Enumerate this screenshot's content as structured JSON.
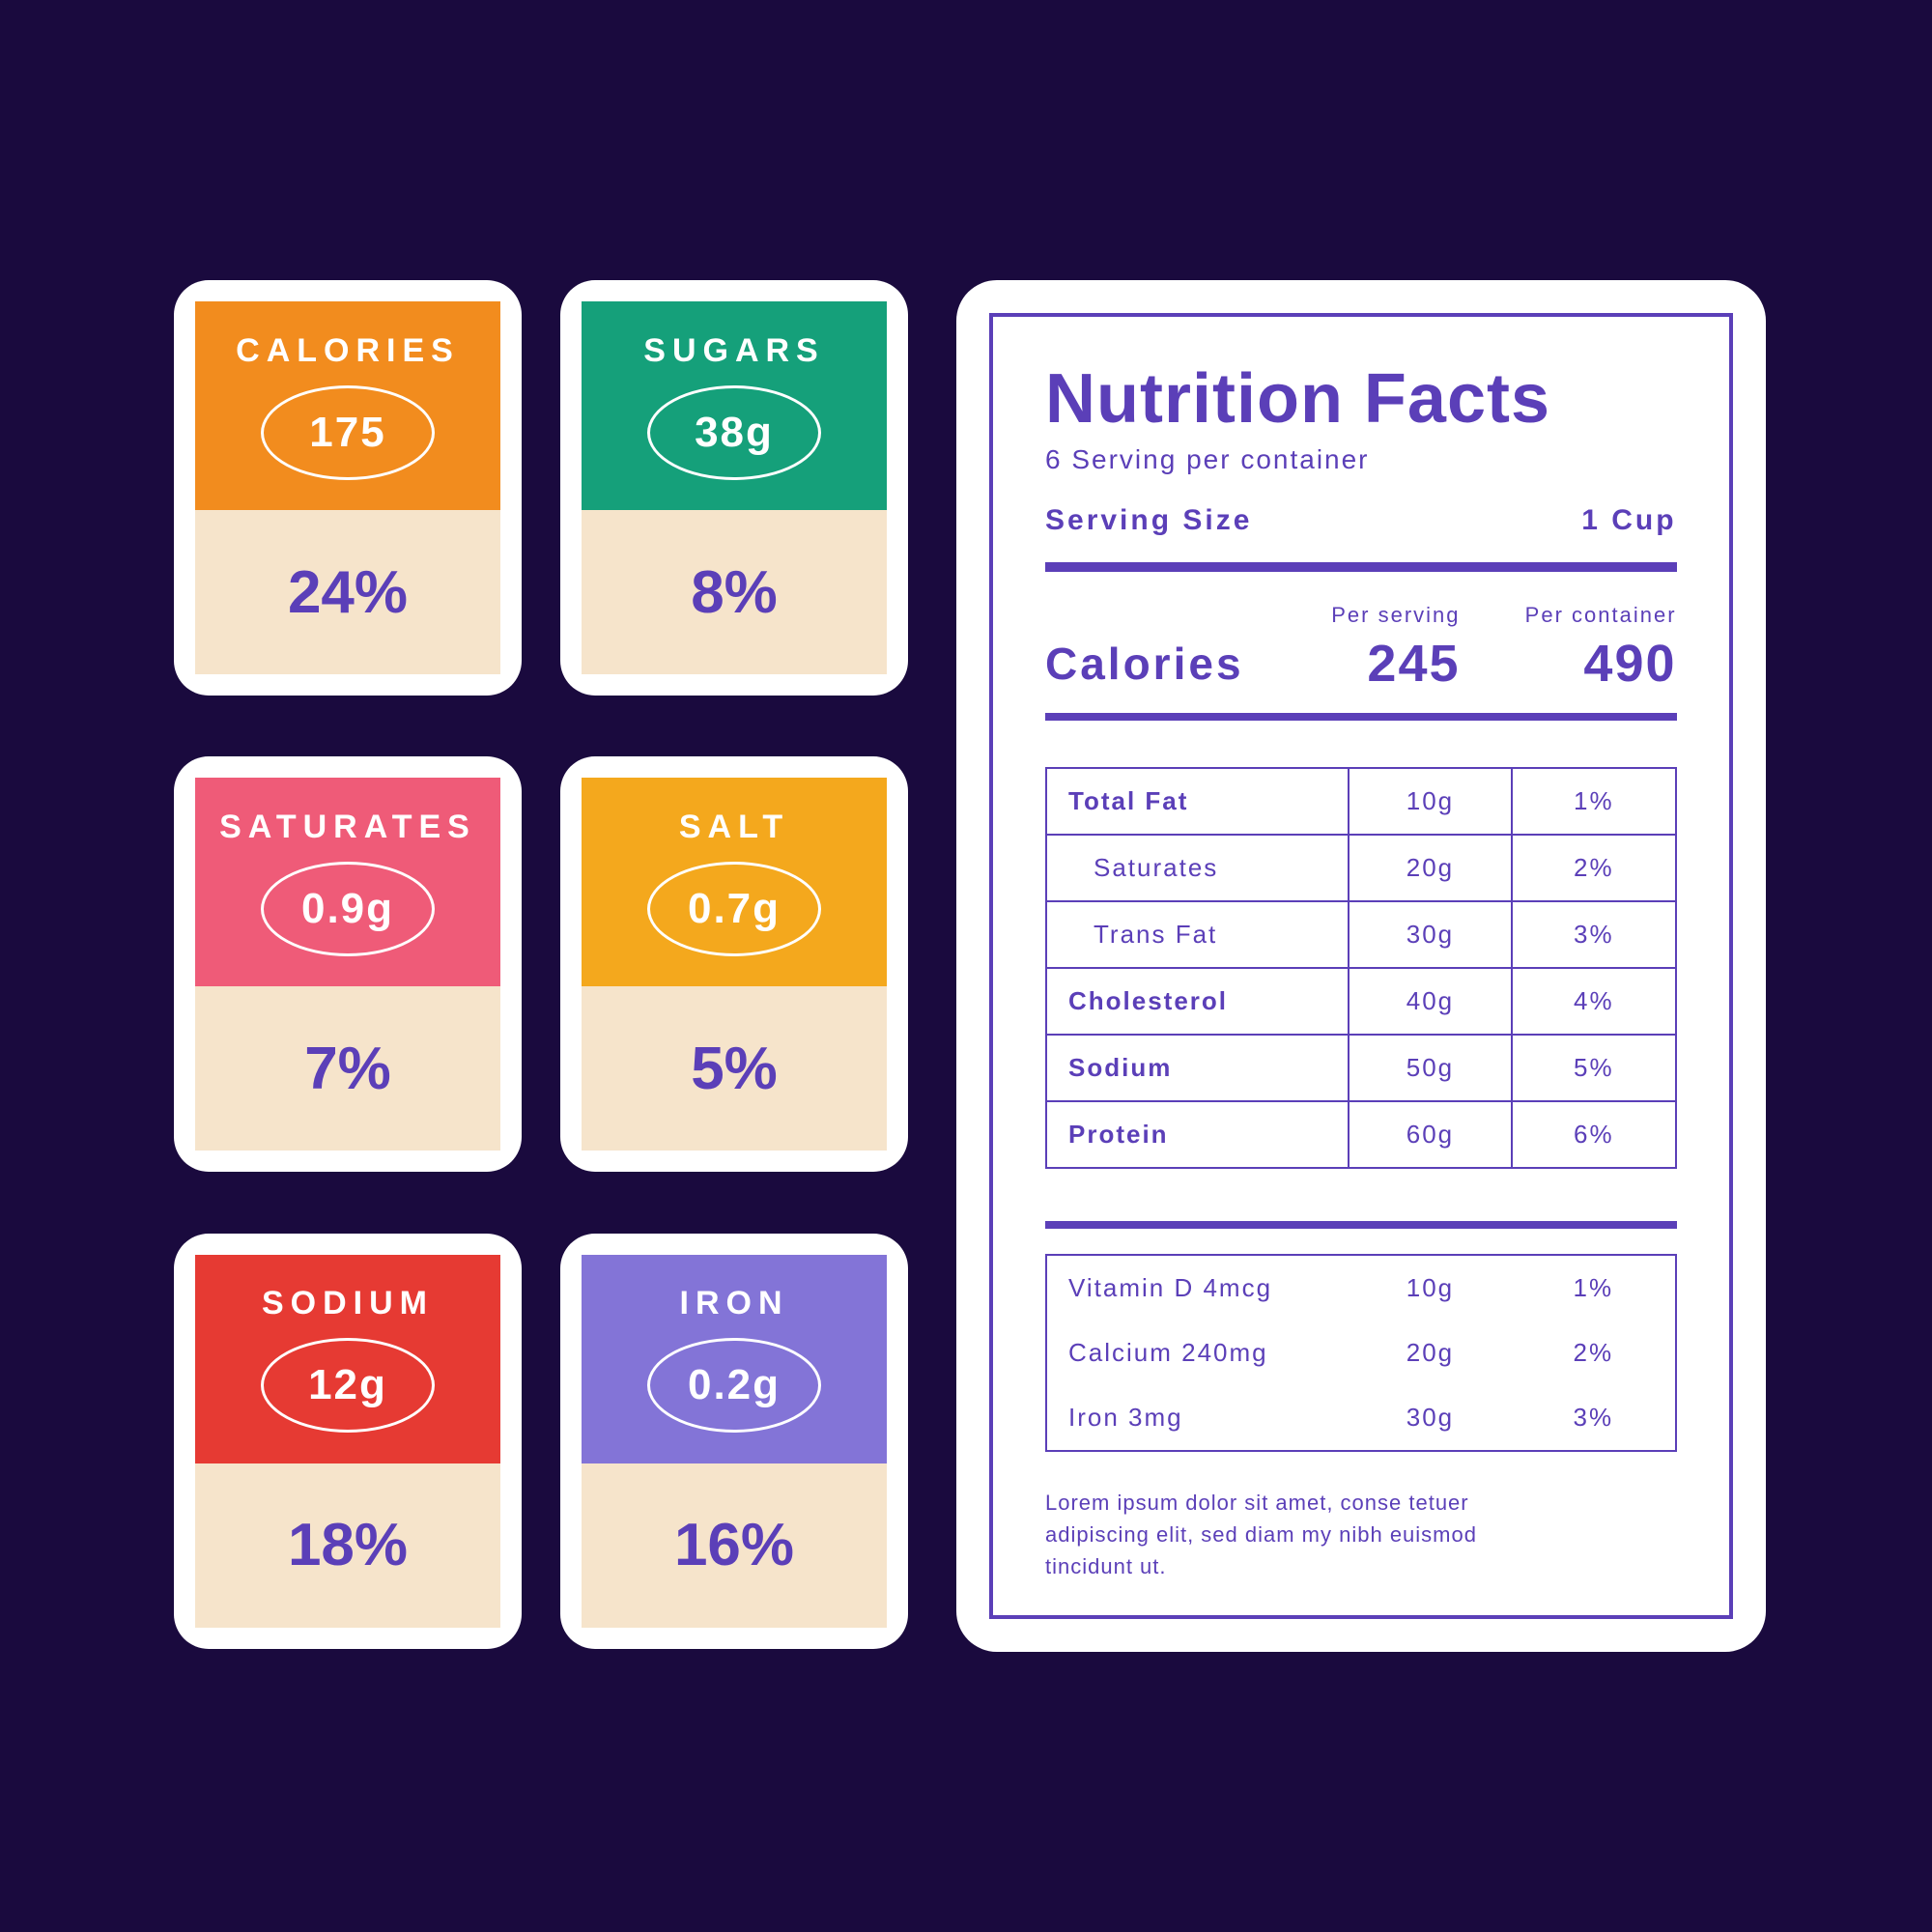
{
  "background_color": "#1a0a3e",
  "card_frame_color": "#ffffff",
  "card_bottom_bg": "#f6e4cb",
  "percent_text_color": "#5b3fb8",
  "cards": [
    {
      "title": "CALORIES",
      "value": "175",
      "percent": "24%",
      "top_color": "#f28c1e"
    },
    {
      "title": "SUGARS",
      "value": "38g",
      "percent": "8%",
      "top_color": "#15a07a"
    },
    {
      "title": "SATURATES",
      "value": "0.9g",
      "percent": "7%",
      "top_color": "#ef5b78"
    },
    {
      "title": "SALT",
      "value": "0.7g",
      "percent": "5%",
      "top_color": "#f4a81d"
    },
    {
      "title": "SODIUM",
      "value": "12g",
      "percent": "18%",
      "top_color": "#e63a33"
    },
    {
      "title": "IRON",
      "value": "0.2g",
      "percent": "16%",
      "top_color": "#8374d7"
    }
  ],
  "panel": {
    "title": "Nutrition Facts",
    "subtitle": "6 Serving per container",
    "serving_size_label": "Serving Size",
    "serving_size_value": "1 Cup",
    "calories_label": "Calories",
    "per_serving_label": "Per serving",
    "per_serving_value": "245",
    "per_container_label": "Per container",
    "per_container_value": "490",
    "accent_color": "#5b3fb8",
    "nutrients": [
      {
        "name": "Total Fat",
        "amount": "10g",
        "pct": "1%",
        "bold": true,
        "indent": false
      },
      {
        "name": "Saturates",
        "amount": "20g",
        "pct": "2%",
        "bold": false,
        "indent": true
      },
      {
        "name": "Trans Fat",
        "amount": "30g",
        "pct": "3%",
        "bold": false,
        "indent": true
      },
      {
        "name": "Cholesterol",
        "amount": "40g",
        "pct": "4%",
        "bold": true,
        "indent": false
      },
      {
        "name": "Sodium",
        "amount": "50g",
        "pct": "5%",
        "bold": true,
        "indent": false
      },
      {
        "name": "Protein",
        "amount": "60g",
        "pct": "6%",
        "bold": true,
        "indent": false
      }
    ],
    "secondary": [
      {
        "name": "Vitamin D 4mcg",
        "amount": "10g",
        "pct": "1%"
      },
      {
        "name": "Calcium  240mg",
        "amount": "20g",
        "pct": "2%"
      },
      {
        "name": "Iron 3mg",
        "amount": "30g",
        "pct": "3%"
      }
    ],
    "footnote": "Lorem ipsum dolor sit amet, conse tetuer adipiscing elit, sed diam my nibh euismod tincidunt ut."
  }
}
